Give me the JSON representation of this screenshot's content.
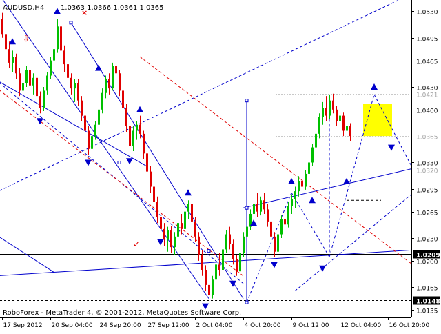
{
  "header": {
    "symbol": "AUDUSD,H4",
    "ohlc": "1.0363 1.0366 1.0361 1.0365"
  },
  "footer": {
    "copyright": "RoboForex - MetaTrader 4, © 2001-2012, MetaQuotes Software Corp."
  },
  "colors": {
    "bull": "#00c000",
    "bear": "#e00000",
    "trend": "#0000cc",
    "channel": "#e00000",
    "target": "#ffff00",
    "ask": "#000000"
  },
  "chart_data": {
    "type": "candlestick",
    "ylim": [
      1.0125,
      1.0545
    ],
    "y_ticks": [
      "1.0530",
      "1.0495",
      "1.0465",
      "1.0430",
      "1.0400",
      "1.0330",
      "1.0295",
      "1.0265",
      "1.0230",
      "1.0200",
      "1.0165",
      "1.0135"
    ],
    "y_tick_values": [
      1.053,
      1.0495,
      1.0465,
      1.043,
      1.04,
      1.033,
      1.0295,
      1.0265,
      1.023,
      1.02,
      1.0165,
      1.0135
    ],
    "price_labels": [
      {
        "value": 1.0421,
        "text": "1.0421",
        "style": "faint"
      },
      {
        "value": 1.0365,
        "text": "1.0365",
        "style": "faint"
      },
      {
        "value": 1.032,
        "text": "1.0320",
        "style": "faint"
      },
      {
        "value": 1.0209,
        "text": "1.0209",
        "style": "boxed"
      },
      {
        "value": 1.0148,
        "text": "1.0148",
        "style": "boxed"
      }
    ],
    "x_ticks": [
      "17 Sep 2012",
      "20 Sep 04:00",
      "24 Sep 20:00",
      "27 Sep 12:00",
      "2 Oct 04:00",
      "4 Oct 20:00",
      "9 Oct 12:00",
      "12 Oct 04:00",
      "16 Oct 20:00"
    ],
    "x_tick_index": [
      0,
      14,
      28,
      42,
      56,
      70,
      84,
      98,
      112
    ],
    "candles": [
      [
        1.052,
        1.0528,
        1.0495,
        1.05
      ],
      [
        1.05,
        1.0505,
        1.047,
        1.048
      ],
      [
        1.048,
        1.049,
        1.0455,
        1.0462
      ],
      [
        1.0462,
        1.0478,
        1.045,
        1.047
      ],
      [
        1.047,
        1.0474,
        1.044,
        1.0448
      ],
      [
        1.0448,
        1.0455,
        1.0418,
        1.0425
      ],
      [
        1.0425,
        1.044,
        1.0415,
        1.0435
      ],
      [
        1.0435,
        1.0458,
        1.043,
        1.0452
      ],
      [
        1.0452,
        1.046,
        1.0425,
        1.0432
      ],
      [
        1.0432,
        1.0448,
        1.042,
        1.0442
      ],
      [
        1.0442,
        1.0446,
        1.041,
        1.0418
      ],
      [
        1.0418,
        1.0424,
        1.0395,
        1.0402
      ],
      [
        1.0402,
        1.043,
        1.0398,
        1.0425
      ],
      [
        1.0425,
        1.045,
        1.042,
        1.0445
      ],
      [
        1.0445,
        1.047,
        1.044,
        1.0465
      ],
      [
        1.0465,
        1.0485,
        1.0455,
        1.048
      ],
      [
        1.048,
        1.052,
        1.0475,
        1.051
      ],
      [
        1.051,
        1.0518,
        1.047,
        1.0478
      ],
      [
        1.0478,
        1.0485,
        1.045,
        1.046
      ],
      [
        1.046,
        1.0466,
        1.0435,
        1.0442
      ],
      [
        1.0442,
        1.0448,
        1.042,
        1.0428
      ],
      [
        1.0428,
        1.044,
        1.041,
        1.0435
      ],
      [
        1.0435,
        1.044,
        1.0405,
        1.0412
      ],
      [
        1.0412,
        1.0418,
        1.0385,
        1.0392
      ],
      [
        1.0392,
        1.0398,
        1.0365,
        1.0372
      ],
      [
        1.0372,
        1.0378,
        1.034,
        1.0348
      ],
      [
        1.0348,
        1.0372,
        1.0342,
        1.0365
      ],
      [
        1.0365,
        1.0385,
        1.036,
        1.038
      ],
      [
        1.038,
        1.0405,
        1.0375,
        1.04
      ],
      [
        1.04,
        1.0428,
        1.0395,
        1.0422
      ],
      [
        1.0422,
        1.0445,
        1.0415,
        1.044
      ],
      [
        1.044,
        1.0448,
        1.042,
        1.0428
      ],
      [
        1.0428,
        1.0462,
        1.0425,
        1.0458
      ],
      [
        1.0458,
        1.047,
        1.044,
        1.0448
      ],
      [
        1.0448,
        1.0452,
        1.0418,
        1.0425
      ],
      [
        1.0425,
        1.043,
        1.0395,
        1.0402
      ],
      [
        1.0402,
        1.0408,
        1.037,
        1.0378
      ],
      [
        1.0378,
        1.0385,
        1.0345,
        1.0352
      ],
      [
        1.0352,
        1.0378,
        1.0345,
        1.0372
      ],
      [
        1.0372,
        1.0385,
        1.036,
        1.038
      ],
      [
        1.038,
        1.0392,
        1.0362,
        1.0368
      ],
      [
        1.0368,
        1.0372,
        1.0335,
        1.0342
      ],
      [
        1.0342,
        1.0348,
        1.031,
        1.0318
      ],
      [
        1.0318,
        1.0325,
        1.029,
        1.0298
      ],
      [
        1.0298,
        1.0305,
        1.027,
        1.0278
      ],
      [
        1.0278,
        1.0285,
        1.025,
        1.0258
      ],
      [
        1.0258,
        1.0262,
        1.0235,
        1.0242
      ],
      [
        1.0242,
        1.025,
        1.022,
        1.0228
      ],
      [
        1.0228,
        1.0245,
        1.0212,
        1.024
      ],
      [
        1.024,
        1.0246,
        1.021,
        1.0218
      ],
      [
        1.0218,
        1.0238,
        1.0208,
        1.0232
      ],
      [
        1.0232,
        1.0255,
        1.0228,
        1.025
      ],
      [
        1.025,
        1.0262,
        1.0235,
        1.0242
      ],
      [
        1.0242,
        1.027,
        1.0238,
        1.0265
      ],
      [
        1.0265,
        1.028,
        1.0255,
        1.0275
      ],
      [
        1.0275,
        1.028,
        1.0245,
        1.0252
      ],
      [
        1.0252,
        1.0258,
        1.0225,
        1.0232
      ],
      [
        1.0232,
        1.0238,
        1.02,
        1.0208
      ],
      [
        1.0208,
        1.0214,
        1.018,
        1.0188
      ],
      [
        1.0188,
        1.0194,
        1.016,
        1.0168
      ],
      [
        1.0168,
        1.0172,
        1.0148,
        1.0155
      ],
      [
        1.0155,
        1.018,
        1.015,
        1.0175
      ],
      [
        1.0175,
        1.02,
        1.017,
        1.0195
      ],
      [
        1.0195,
        1.021,
        1.018,
        1.0188
      ],
      [
        1.0188,
        1.022,
        1.0185,
        1.0215
      ],
      [
        1.0215,
        1.024,
        1.021,
        1.0235
      ],
      [
        1.0235,
        1.0245,
        1.0215,
        1.0222
      ],
      [
        1.0222,
        1.0228,
        1.0195,
        1.0202
      ],
      [
        1.0202,
        1.0208,
        1.018,
        1.0186
      ],
      [
        1.0186,
        1.0215,
        1.0182,
        1.021
      ],
      [
        1.021,
        1.0238,
        1.0205,
        1.0232
      ],
      [
        1.0232,
        1.025,
        1.0225,
        1.0245
      ],
      [
        1.0245,
        1.0268,
        1.024,
        1.0262
      ],
      [
        1.0262,
        1.028,
        1.0255,
        1.0275
      ],
      [
        1.0275,
        1.029,
        1.0258,
        1.0265
      ],
      [
        1.0265,
        1.0285,
        1.026,
        1.028
      ],
      [
        1.028,
        1.029,
        1.0262,
        1.0268
      ],
      [
        1.0268,
        1.0275,
        1.0245,
        1.0252
      ],
      [
        1.0252,
        1.0258,
        1.0225,
        1.0232
      ],
      [
        1.0232,
        1.0238,
        1.0205,
        1.0212
      ],
      [
        1.0212,
        1.024,
        1.0208,
        1.0235
      ],
      [
        1.0235,
        1.026,
        1.023,
        1.0255
      ],
      [
        1.0255,
        1.0265,
        1.024,
        1.0248
      ],
      [
        1.0248,
        1.0278,
        1.0244,
        1.0272
      ],
      [
        1.0272,
        1.0288,
        1.0262,
        1.0282
      ],
      [
        1.0282,
        1.0298,
        1.027,
        1.0292
      ],
      [
        1.0292,
        1.0312,
        1.0285,
        1.0305
      ],
      [
        1.0305,
        1.0318,
        1.0292,
        1.0298
      ],
      [
        1.0298,
        1.032,
        1.0294,
        1.0315
      ],
      [
        1.0315,
        1.0335,
        1.031,
        1.033
      ],
      [
        1.033,
        1.0355,
        1.0325,
        1.035
      ],
      [
        1.035,
        1.0372,
        1.0345,
        1.0368
      ],
      [
        1.0368,
        1.0395,
        1.0362,
        1.039
      ],
      [
        1.039,
        1.041,
        1.038,
        1.0402
      ],
      [
        1.0402,
        1.0418,
        1.0385,
        1.0392
      ],
      [
        1.0392,
        1.042,
        1.0388,
        1.0412
      ],
      [
        1.0412,
        1.0421,
        1.0395,
        1.04
      ],
      [
        1.04,
        1.0405,
        1.0378,
        1.0385
      ],
      [
        1.0385,
        1.0398,
        1.037,
        1.0392
      ],
      [
        1.0392,
        1.0396,
        1.0365,
        1.0372
      ],
      [
        1.0372,
        1.0385,
        1.036,
        1.0378
      ],
      [
        1.0378,
        1.0382,
        1.0358,
        1.0365
      ]
    ]
  }
}
